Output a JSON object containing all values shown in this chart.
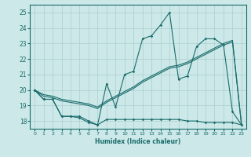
{
  "xlabel": "Humidex (Indice chaleur)",
  "bg_color": "#cce8e8",
  "grid_color": "#aacfcf",
  "line_color": "#1a6b6b",
  "xlim": [
    -0.5,
    23.5
  ],
  "ylim": [
    17.5,
    25.5
  ],
  "yticks": [
    18,
    19,
    20,
    21,
    22,
    23,
    24,
    25
  ],
  "xticks": [
    0,
    1,
    2,
    3,
    4,
    5,
    6,
    7,
    8,
    9,
    10,
    11,
    12,
    13,
    14,
    15,
    16,
    17,
    18,
    19,
    20,
    21,
    22,
    23
  ],
  "series_jagged": {
    "x": [
      0,
      1,
      2,
      3,
      4,
      5,
      6,
      7,
      8,
      9,
      10,
      11,
      12,
      13,
      14,
      15,
      16,
      17,
      18,
      19,
      20,
      21,
      22,
      23
    ],
    "y": [
      20.0,
      19.4,
      19.4,
      18.3,
      18.3,
      18.3,
      18.0,
      17.75,
      20.4,
      18.9,
      21.0,
      21.2,
      23.3,
      23.5,
      24.2,
      25.0,
      20.7,
      20.9,
      22.8,
      23.3,
      23.3,
      22.9,
      18.6,
      17.75
    ]
  },
  "series_flat": {
    "x": [
      0,
      1,
      2,
      3,
      4,
      5,
      6,
      7,
      8,
      9,
      10,
      11,
      12,
      13,
      14,
      15,
      16,
      17,
      18,
      19,
      20,
      21,
      22,
      23
    ],
    "y": [
      20.0,
      19.4,
      19.4,
      18.3,
      18.3,
      18.2,
      17.9,
      17.75,
      18.1,
      18.1,
      18.1,
      18.1,
      18.1,
      18.1,
      18.1,
      18.1,
      18.1,
      18.0,
      18.0,
      17.9,
      17.9,
      17.9,
      17.9,
      17.75
    ]
  },
  "series_trend1": {
    "x": [
      0,
      1,
      2,
      3,
      4,
      5,
      6,
      7,
      8,
      9,
      10,
      11,
      12,
      13,
      14,
      15,
      16,
      17,
      18,
      19,
      20,
      21,
      22,
      23
    ],
    "y": [
      20.0,
      19.6,
      19.5,
      19.3,
      19.2,
      19.1,
      19.0,
      18.8,
      19.2,
      19.5,
      19.8,
      20.1,
      20.5,
      20.8,
      21.1,
      21.4,
      21.5,
      21.7,
      22.0,
      22.3,
      22.6,
      22.9,
      23.1,
      17.75
    ]
  },
  "series_trend2": {
    "x": [
      0,
      1,
      2,
      3,
      4,
      5,
      6,
      7,
      8,
      9,
      10,
      11,
      12,
      13,
      14,
      15,
      16,
      17,
      18,
      19,
      20,
      21,
      22,
      23
    ],
    "y": [
      20.0,
      19.7,
      19.6,
      19.4,
      19.3,
      19.2,
      19.1,
      18.9,
      19.3,
      19.6,
      19.9,
      20.2,
      20.6,
      20.9,
      21.2,
      21.5,
      21.6,
      21.8,
      22.1,
      22.4,
      22.7,
      23.0,
      23.2,
      17.75
    ]
  }
}
